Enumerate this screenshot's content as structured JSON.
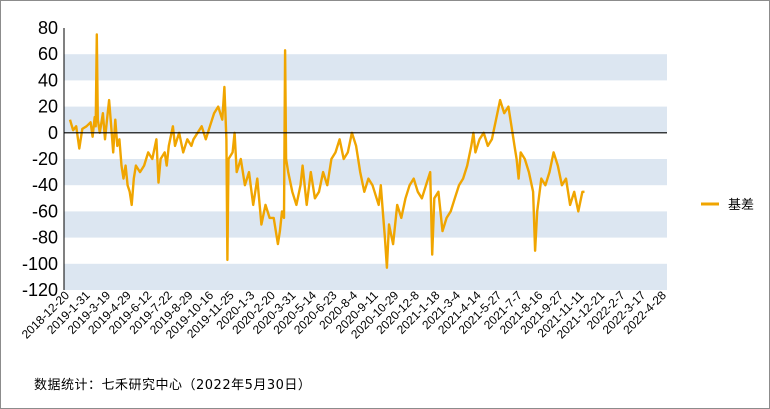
{
  "chart_data": {
    "type": "line",
    "title": "",
    "xlabel": "",
    "ylabel": "",
    "ylim": [
      -120,
      80
    ],
    "yticks": [
      80,
      60,
      40,
      20,
      0,
      -20,
      -40,
      -60,
      -80,
      -100,
      -120
    ],
    "grid": "alternating horizontal bands",
    "legend_position": "right",
    "xtick_labels": [
      "2018-12-20",
      "2019-1-31",
      "2019-3-19",
      "2019-4-29",
      "2019-6-12",
      "2019-7-22",
      "2019-8-29",
      "2019-10-16",
      "2019-11-25",
      "2020-1-3",
      "2020-2-20",
      "2020-3-31",
      "2020-5-14",
      "2020-6-23",
      "2020-8-4",
      "2020-9-11",
      "2020-10-29",
      "2020-12-8",
      "2021-1-18",
      "2021-3-4",
      "2021-4-14",
      "2021-5-27",
      "2021-7-7",
      "2021-8-16",
      "2021-9-27",
      "2021-11-11",
      "2021-12-21",
      "2022-2-7",
      "2022-3-17",
      "2022-4-28"
    ],
    "series": [
      {
        "name": "基差",
        "color": "#f0a500",
        "points": [
          [
            0,
            10
          ],
          [
            0.15,
            2
          ],
          [
            0.3,
            5
          ],
          [
            0.45,
            -12
          ],
          [
            0.6,
            3
          ],
          [
            0.8,
            5
          ],
          [
            1.0,
            8
          ],
          [
            1.1,
            -3
          ],
          [
            1.2,
            12
          ],
          [
            1.25,
            5
          ],
          [
            1.3,
            75
          ],
          [
            1.35,
            10
          ],
          [
            1.45,
            0
          ],
          [
            1.6,
            15
          ],
          [
            1.7,
            -5
          ],
          [
            1.8,
            10
          ],
          [
            1.9,
            25
          ],
          [
            2.0,
            5
          ],
          [
            2.1,
            -15
          ],
          [
            2.2,
            10
          ],
          [
            2.3,
            -10
          ],
          [
            2.4,
            -5
          ],
          [
            2.5,
            -25
          ],
          [
            2.6,
            -35
          ],
          [
            2.7,
            -25
          ],
          [
            2.8,
            -40
          ],
          [
            2.9,
            -45
          ],
          [
            3.0,
            -55
          ],
          [
            3.1,
            -35
          ],
          [
            3.2,
            -25
          ],
          [
            3.4,
            -30
          ],
          [
            3.6,
            -25
          ],
          [
            3.8,
            -15
          ],
          [
            4.0,
            -20
          ],
          [
            4.2,
            -5
          ],
          [
            4.3,
            -38
          ],
          [
            4.4,
            -20
          ],
          [
            4.6,
            -15
          ],
          [
            4.7,
            -25
          ],
          [
            4.8,
            -10
          ],
          [
            5.0,
            5
          ],
          [
            5.1,
            -10
          ],
          [
            5.3,
            0
          ],
          [
            5.5,
            -15
          ],
          [
            5.7,
            -5
          ],
          [
            5.9,
            -10
          ],
          [
            6.0,
            -5
          ],
          [
            6.2,
            0
          ],
          [
            6.4,
            5
          ],
          [
            6.6,
            -5
          ],
          [
            6.8,
            5
          ],
          [
            7.0,
            15
          ],
          [
            7.2,
            20
          ],
          [
            7.4,
            10
          ],
          [
            7.5,
            35
          ],
          [
            7.6,
            -5
          ],
          [
            7.65,
            -97
          ],
          [
            7.7,
            -20
          ],
          [
            7.9,
            -15
          ],
          [
            8.0,
            0
          ],
          [
            8.1,
            -30
          ],
          [
            8.3,
            -20
          ],
          [
            8.5,
            -40
          ],
          [
            8.7,
            -30
          ],
          [
            8.9,
            -55
          ],
          [
            9.1,
            -35
          ],
          [
            9.3,
            -70
          ],
          [
            9.5,
            -55
          ],
          [
            9.7,
            -65
          ],
          [
            9.9,
            -65
          ],
          [
            10.1,
            -85
          ],
          [
            10.2,
            -75
          ],
          [
            10.3,
            -60
          ],
          [
            10.4,
            -65
          ],
          [
            10.45,
            63
          ],
          [
            10.5,
            -20
          ],
          [
            10.6,
            -30
          ],
          [
            10.8,
            -45
          ],
          [
            11.0,
            -55
          ],
          [
            11.2,
            -40
          ],
          [
            11.3,
            -25
          ],
          [
            11.5,
            -55
          ],
          [
            11.7,
            -30
          ],
          [
            11.9,
            -50
          ],
          [
            12.1,
            -45
          ],
          [
            12.3,
            -30
          ],
          [
            12.5,
            -40
          ],
          [
            12.7,
            -20
          ],
          [
            12.9,
            -15
          ],
          [
            13.1,
            -5
          ],
          [
            13.3,
            -20
          ],
          [
            13.5,
            -15
          ],
          [
            13.7,
            0
          ],
          [
            13.9,
            -10
          ],
          [
            14.1,
            -30
          ],
          [
            14.3,
            -45
          ],
          [
            14.5,
            -35
          ],
          [
            14.7,
            -40
          ],
          [
            14.9,
            -50
          ],
          [
            15.0,
            -55
          ],
          [
            15.1,
            -40
          ],
          [
            15.2,
            -60
          ],
          [
            15.3,
            -80
          ],
          [
            15.4,
            -103
          ],
          [
            15.5,
            -70
          ],
          [
            15.7,
            -85
          ],
          [
            15.9,
            -55
          ],
          [
            16.1,
            -65
          ],
          [
            16.3,
            -50
          ],
          [
            16.5,
            -40
          ],
          [
            16.7,
            -35
          ],
          [
            16.9,
            -45
          ],
          [
            17.1,
            -50
          ],
          [
            17.3,
            -40
          ],
          [
            17.5,
            -30
          ],
          [
            17.6,
            -93
          ],
          [
            17.7,
            -50
          ],
          [
            17.9,
            -45
          ],
          [
            18.1,
            -75
          ],
          [
            18.3,
            -65
          ],
          [
            18.5,
            -60
          ],
          [
            18.7,
            -50
          ],
          [
            18.9,
            -40
          ],
          [
            19.1,
            -35
          ],
          [
            19.3,
            -25
          ],
          [
            19.5,
            -10
          ],
          [
            19.6,
            0
          ],
          [
            19.7,
            -15
          ],
          [
            19.9,
            -5
          ],
          [
            20.1,
            0
          ],
          [
            20.3,
            -10
          ],
          [
            20.5,
            -5
          ],
          [
            20.7,
            10
          ],
          [
            20.9,
            25
          ],
          [
            21.1,
            15
          ],
          [
            21.3,
            20
          ],
          [
            21.5,
            0
          ],
          [
            21.6,
            -10
          ],
          [
            21.7,
            -20
          ],
          [
            21.8,
            -35
          ],
          [
            21.9,
            -15
          ],
          [
            22.1,
            -20
          ],
          [
            22.3,
            -30
          ],
          [
            22.5,
            -45
          ],
          [
            22.6,
            -90
          ],
          [
            22.7,
            -60
          ],
          [
            22.9,
            -35
          ],
          [
            23.1,
            -40
          ],
          [
            23.3,
            -30
          ],
          [
            23.5,
            -15
          ],
          [
            23.7,
            -25
          ],
          [
            23.9,
            -40
          ],
          [
            24.1,
            -35
          ],
          [
            24.3,
            -55
          ],
          [
            24.5,
            -45
          ],
          [
            24.7,
            -60
          ],
          [
            24.9,
            -45
          ],
          [
            25.0,
            -45
          ]
        ]
      }
    ]
  },
  "legend": {
    "label": "基差"
  },
  "source_note": "数据统计：七禾研究中心（2022年5月30日）"
}
